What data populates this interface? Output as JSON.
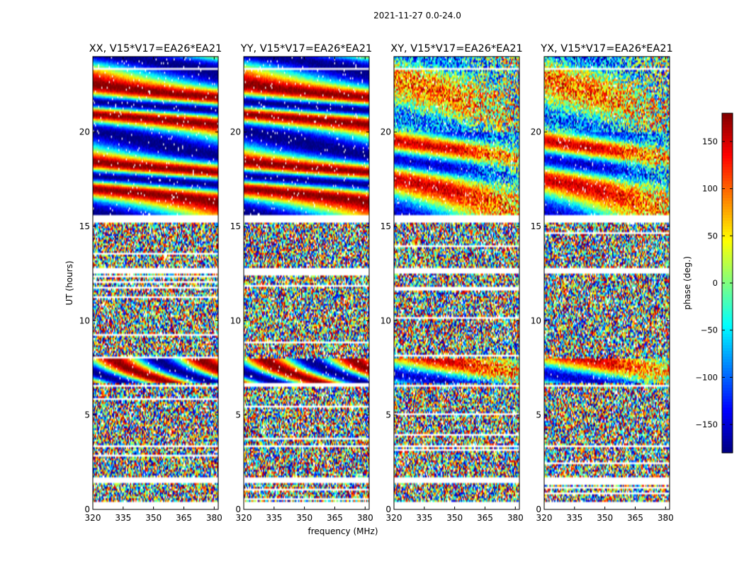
{
  "chart_data": {
    "type": "heatmap",
    "suptitle": "2021-11-27 0.0-24.0",
    "xlabel": "frequency (MHz)",
    "ylabel": "UT (hours)",
    "xlim": [
      320,
      382
    ],
    "ylim": [
      0,
      24
    ],
    "xticks": [
      320,
      335,
      350,
      365,
      380
    ],
    "yticks": [
      0,
      5,
      10,
      15,
      20
    ],
    "panels": [
      {
        "title": "XX, V15*V17=EA26*EA21",
        "kind": "parallel"
      },
      {
        "title": "YY, V15*V17=EA26*EA21",
        "kind": "parallel"
      },
      {
        "title": "XY, V15*V17=EA26*EA21",
        "kind": "cross"
      },
      {
        "title": "YX, V15*V17=EA26*EA21",
        "kind": "cross"
      }
    ],
    "colorbar": {
      "label": "phase (deg.)",
      "range": [
        -180,
        180
      ],
      "ticks": [
        -150,
        -100,
        -50,
        0,
        50,
        100,
        150
      ],
      "colormap": "jet"
    },
    "blank_time_ranges_hours": [
      [
        0,
        0.35
      ],
      [
        1.4,
        1.7
      ],
      [
        3.3,
        3.4
      ],
      [
        6.5,
        6.6
      ],
      [
        12.5,
        12.8
      ],
      [
        15.2,
        15.6
      ],
      [
        23.3,
        23.45
      ]
    ],
    "coherent_phase_ranges_hours": [
      [
        6.7,
        8.0
      ],
      [
        15.6,
        24.0
      ]
    ],
    "noise_phase_description": "uniform random phase outside coherent ranges"
  }
}
